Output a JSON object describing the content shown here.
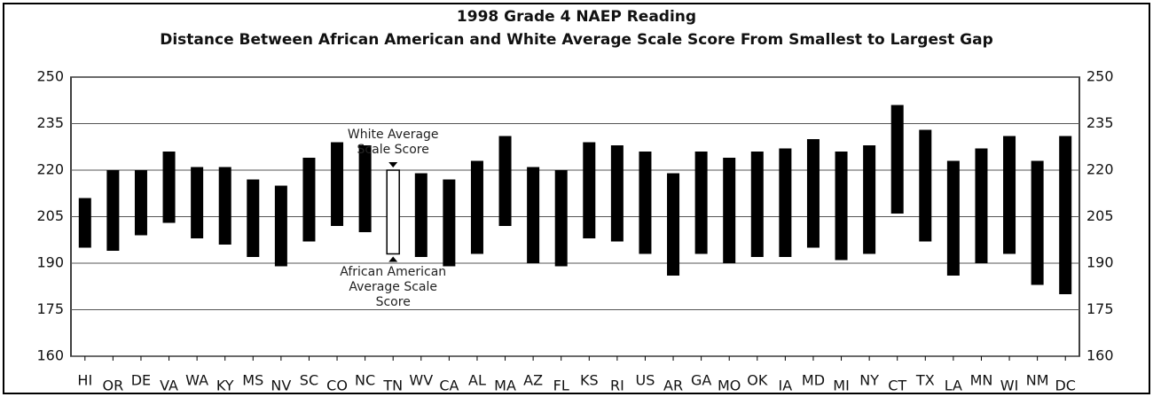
{
  "chart_data": {
    "type": "floating_bar",
    "title": "1998 Grade 4 NAEP Reading",
    "subtitle": "Distance Between African American and White Average Scale Score From Smallest to Largest Gap",
    "categories": [
      "HI",
      "OR",
      "DE",
      "VA",
      "WA",
      "KY",
      "MS",
      "NV",
      "SC",
      "CO",
      "NC",
      "TN",
      "WV",
      "CA",
      "AL",
      "MA",
      "AZ",
      "FL",
      "KS",
      "RI",
      "US",
      "AR",
      "GA",
      "MO",
      "OK",
      "IA",
      "MD",
      "MI",
      "NY",
      "CT",
      "TX",
      "LA",
      "MN",
      "WI",
      "NM",
      "DC"
    ],
    "series": [
      {
        "name": "White Average Scale Score",
        "color": "#000000",
        "values": [
          211,
          220,
          220,
          226,
          221,
          221,
          217,
          215,
          224,
          229,
          228,
          220,
          219,
          217,
          223,
          231,
          221,
          220,
          229,
          228,
          226,
          219,
          226,
          224,
          226,
          227,
          230,
          226,
          228,
          241,
          233,
          223,
          227,
          231,
          223,
          231
        ]
      },
      {
        "name": "African American Average Scale Score",
        "color": "#000000",
        "values": [
          195,
          194,
          199,
          203,
          198,
          196,
          192,
          189,
          197,
          202,
          200,
          193,
          192,
          189,
          193,
          202,
          190,
          189,
          198,
          197,
          193,
          186,
          193,
          190,
          192,
          192,
          195,
          191,
          193,
          206,
          197,
          186,
          190,
          193,
          183,
          180
        ]
      }
    ],
    "highlight": "TN",
    "highlight_color": "#ffffff",
    "ylim": [
      160,
      250
    ],
    "yticks": [
      160,
      175,
      190,
      205,
      220,
      235,
      250
    ],
    "grid": true
  }
}
